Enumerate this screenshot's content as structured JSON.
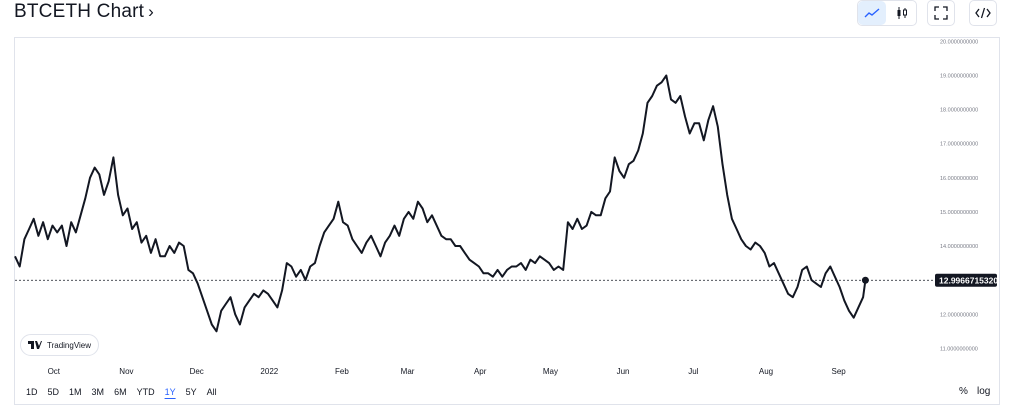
{
  "header": {
    "title": "BTCETH Chart",
    "chevron": "›"
  },
  "toolbar": {
    "buttons": [
      {
        "name": "line-chart-icon",
        "active": true
      },
      {
        "name": "candlestick-icon",
        "active": false
      },
      {
        "name": "fullscreen-icon",
        "active": false
      },
      {
        "name": "embed-code-icon",
        "active": false
      }
    ]
  },
  "logo": {
    "text": "TradingView"
  },
  "ranges": [
    "1D",
    "5D",
    "1M",
    "3M",
    "6M",
    "YTD",
    "1Y",
    "5Y",
    "All"
  ],
  "active_range": "1Y",
  "scale_toggles": {
    "percent": "%",
    "log": "log"
  },
  "colors": {
    "line": "#131722",
    "grid": "#e0e3eb",
    "active": "#2962ff",
    "price_label_bg": "#131722"
  },
  "chart_data": {
    "type": "line",
    "series_name": "BTCETH",
    "current_value": 12.996671532,
    "current_value_label": "12.9966715320",
    "ylim": [
      10.6,
      20.1
    ],
    "y_ticks": [
      11,
      12,
      13,
      14,
      15,
      16,
      17,
      18,
      19,
      20
    ],
    "y_tick_labels": [
      "11.0000000000",
      "12.0000000000",
      "13.0000000000",
      "14.0000000000",
      "15.0000000000",
      "16.0000000000",
      "17.0000000000",
      "18.0000000000",
      "19.0000000000",
      "20.0000000000"
    ],
    "x_ticks": [
      {
        "label": "Oct",
        "date": "2021-10-01"
      },
      {
        "label": "Nov",
        "date": "2021-11-01"
      },
      {
        "label": "Dec",
        "date": "2021-12-01"
      },
      {
        "label": "2022",
        "date": "2022-01-01"
      },
      {
        "label": "Feb",
        "date": "2022-02-01"
      },
      {
        "label": "Mar",
        "date": "2022-03-01"
      },
      {
        "label": "Apr",
        "date": "2022-04-01"
      },
      {
        "label": "May",
        "date": "2022-05-01"
      },
      {
        "label": "Jun",
        "date": "2022-06-01"
      },
      {
        "label": "Jul",
        "date": "2022-07-01"
      },
      {
        "label": "Aug",
        "date": "2022-08-01"
      },
      {
        "label": "Sep",
        "date": "2022-09-01"
      }
    ],
    "xlim": [
      "2021-09-17",
      "2022-10-13"
    ],
    "points": [
      [
        "2021-09-17",
        13.7
      ],
      [
        "2021-09-19",
        13.4
      ],
      [
        "2021-09-21",
        14.2
      ],
      [
        "2021-09-23",
        14.5
      ],
      [
        "2021-09-25",
        14.8
      ],
      [
        "2021-09-27",
        14.3
      ],
      [
        "2021-09-29",
        14.7
      ],
      [
        "2021-10-01",
        14.2
      ],
      [
        "2021-10-03",
        14.6
      ],
      [
        "2021-10-05",
        14.4
      ],
      [
        "2021-10-07",
        14.6
      ],
      [
        "2021-10-09",
        14.0
      ],
      [
        "2021-10-11",
        14.7
      ],
      [
        "2021-10-13",
        14.4
      ],
      [
        "2021-10-15",
        14.9
      ],
      [
        "2021-10-17",
        15.4
      ],
      [
        "2021-10-19",
        16.0
      ],
      [
        "2021-10-21",
        16.3
      ],
      [
        "2021-10-23",
        16.1
      ],
      [
        "2021-10-25",
        15.5
      ],
      [
        "2021-10-27",
        15.9
      ],
      [
        "2021-10-29",
        16.6
      ],
      [
        "2021-10-31",
        15.5
      ],
      [
        "2021-11-02",
        14.9
      ],
      [
        "2021-11-04",
        15.1
      ],
      [
        "2021-11-06",
        14.5
      ],
      [
        "2021-11-08",
        14.7
      ],
      [
        "2021-11-10",
        14.1
      ],
      [
        "2021-11-12",
        14.3
      ],
      [
        "2021-11-14",
        13.8
      ],
      [
        "2021-11-16",
        14.2
      ],
      [
        "2021-11-18",
        13.7
      ],
      [
        "2021-11-20",
        13.7
      ],
      [
        "2021-11-22",
        14.0
      ],
      [
        "2021-11-24",
        13.8
      ],
      [
        "2021-11-26",
        14.1
      ],
      [
        "2021-11-28",
        14.0
      ],
      [
        "2021-11-30",
        13.3
      ],
      [
        "2021-12-02",
        13.2
      ],
      [
        "2021-12-04",
        12.9
      ],
      [
        "2021-12-06",
        12.5
      ],
      [
        "2021-12-08",
        12.1
      ],
      [
        "2021-12-10",
        11.7
      ],
      [
        "2021-12-12",
        11.5
      ],
      [
        "2021-12-14",
        12.1
      ],
      [
        "2021-12-16",
        12.3
      ],
      [
        "2021-12-18",
        12.5
      ],
      [
        "2021-12-20",
        12.0
      ],
      [
        "2021-12-22",
        11.7
      ],
      [
        "2021-12-24",
        12.2
      ],
      [
        "2021-12-26",
        12.4
      ],
      [
        "2021-12-28",
        12.6
      ],
      [
        "2021-12-30",
        12.5
      ],
      [
        "2022-01-01",
        12.7
      ],
      [
        "2022-01-03",
        12.6
      ],
      [
        "2022-01-05",
        12.4
      ],
      [
        "2022-01-07",
        12.2
      ],
      [
        "2022-01-09",
        12.7
      ],
      [
        "2022-01-11",
        13.5
      ],
      [
        "2022-01-13",
        13.4
      ],
      [
        "2022-01-15",
        13.1
      ],
      [
        "2022-01-17",
        13.3
      ],
      [
        "2022-01-19",
        13.0
      ],
      [
        "2022-01-21",
        13.4
      ],
      [
        "2022-01-23",
        13.5
      ],
      [
        "2022-01-25",
        14.0
      ],
      [
        "2022-01-27",
        14.4
      ],
      [
        "2022-01-29",
        14.6
      ],
      [
        "2022-01-31",
        14.8
      ],
      [
        "2022-02-02",
        15.3
      ],
      [
        "2022-02-04",
        14.7
      ],
      [
        "2022-02-06",
        14.6
      ],
      [
        "2022-02-08",
        14.2
      ],
      [
        "2022-02-10",
        14.0
      ],
      [
        "2022-02-12",
        13.8
      ],
      [
        "2022-02-14",
        14.1
      ],
      [
        "2022-02-16",
        14.3
      ],
      [
        "2022-02-18",
        14.0
      ],
      [
        "2022-02-20",
        13.7
      ],
      [
        "2022-02-22",
        14.1
      ],
      [
        "2022-02-24",
        14.3
      ],
      [
        "2022-02-26",
        14.6
      ],
      [
        "2022-02-28",
        14.3
      ],
      [
        "2022-03-02",
        14.8
      ],
      [
        "2022-03-04",
        15.0
      ],
      [
        "2022-03-06",
        14.8
      ],
      [
        "2022-03-08",
        15.3
      ],
      [
        "2022-03-10",
        15.1
      ],
      [
        "2022-03-12",
        14.7
      ],
      [
        "2022-03-14",
        14.9
      ],
      [
        "2022-03-16",
        14.6
      ],
      [
        "2022-03-18",
        14.3
      ],
      [
        "2022-03-20",
        14.2
      ],
      [
        "2022-03-22",
        14.2
      ],
      [
        "2022-03-24",
        14.0
      ],
      [
        "2022-03-26",
        14.0
      ],
      [
        "2022-03-28",
        13.8
      ],
      [
        "2022-03-30",
        13.6
      ],
      [
        "2022-04-01",
        13.5
      ],
      [
        "2022-04-03",
        13.4
      ],
      [
        "2022-04-05",
        13.2
      ],
      [
        "2022-04-07",
        13.2
      ],
      [
        "2022-04-09",
        13.1
      ],
      [
        "2022-04-11",
        13.3
      ],
      [
        "2022-04-13",
        13.1
      ],
      [
        "2022-04-15",
        13.3
      ],
      [
        "2022-04-17",
        13.4
      ],
      [
        "2022-04-19",
        13.4
      ],
      [
        "2022-04-21",
        13.5
      ],
      [
        "2022-04-23",
        13.3
      ],
      [
        "2022-04-25",
        13.6
      ],
      [
        "2022-04-27",
        13.5
      ],
      [
        "2022-04-29",
        13.7
      ],
      [
        "2022-05-01",
        13.6
      ],
      [
        "2022-05-03",
        13.5
      ],
      [
        "2022-05-05",
        13.3
      ],
      [
        "2022-05-07",
        13.4
      ],
      [
        "2022-05-09",
        13.3
      ],
      [
        "2022-05-11",
        14.7
      ],
      [
        "2022-05-13",
        14.5
      ],
      [
        "2022-05-15",
        14.8
      ],
      [
        "2022-05-17",
        14.5
      ],
      [
        "2022-05-19",
        14.6
      ],
      [
        "2022-05-21",
        15.0
      ],
      [
        "2022-05-23",
        14.9
      ],
      [
        "2022-05-25",
        14.9
      ],
      [
        "2022-05-27",
        15.4
      ],
      [
        "2022-05-29",
        15.6
      ],
      [
        "2022-05-31",
        16.6
      ],
      [
        "2022-06-02",
        16.2
      ],
      [
        "2022-06-04",
        16.0
      ],
      [
        "2022-06-06",
        16.4
      ],
      [
        "2022-06-08",
        16.5
      ],
      [
        "2022-06-10",
        16.8
      ],
      [
        "2022-06-12",
        17.3
      ],
      [
        "2022-06-14",
        18.2
      ],
      [
        "2022-06-16",
        18.4
      ],
      [
        "2022-06-18",
        18.7
      ],
      [
        "2022-06-20",
        18.8
      ],
      [
        "2022-06-22",
        19.0
      ],
      [
        "2022-06-24",
        18.3
      ],
      [
        "2022-06-26",
        18.2
      ],
      [
        "2022-06-28",
        18.4
      ],
      [
        "2022-06-30",
        17.8
      ],
      [
        "2022-07-02",
        17.3
      ],
      [
        "2022-07-04",
        17.6
      ],
      [
        "2022-07-06",
        17.6
      ],
      [
        "2022-07-08",
        17.1
      ],
      [
        "2022-07-10",
        17.7
      ],
      [
        "2022-07-12",
        18.1
      ],
      [
        "2022-07-14",
        17.5
      ],
      [
        "2022-07-16",
        16.4
      ],
      [
        "2022-07-18",
        15.5
      ],
      [
        "2022-07-20",
        14.8
      ],
      [
        "2022-07-22",
        14.5
      ],
      [
        "2022-07-24",
        14.2
      ],
      [
        "2022-07-26",
        14.0
      ],
      [
        "2022-07-28",
        13.9
      ],
      [
        "2022-07-30",
        14.1
      ],
      [
        "2022-08-01",
        14.0
      ],
      [
        "2022-08-03",
        13.8
      ],
      [
        "2022-08-05",
        13.4
      ],
      [
        "2022-08-07",
        13.5
      ],
      [
        "2022-08-09",
        13.2
      ],
      [
        "2022-08-11",
        12.9
      ],
      [
        "2022-08-13",
        12.6
      ],
      [
        "2022-08-15",
        12.5
      ],
      [
        "2022-08-17",
        12.8
      ],
      [
        "2022-08-19",
        13.3
      ],
      [
        "2022-08-21",
        13.4
      ],
      [
        "2022-08-23",
        13.0
      ],
      [
        "2022-08-25",
        12.9
      ],
      [
        "2022-08-27",
        12.8
      ],
      [
        "2022-08-29",
        13.2
      ],
      [
        "2022-08-31",
        13.4
      ],
      [
        "2022-09-02",
        13.1
      ],
      [
        "2022-09-04",
        12.8
      ],
      [
        "2022-09-06",
        12.4
      ],
      [
        "2022-09-08",
        12.1
      ],
      [
        "2022-09-10",
        11.9
      ],
      [
        "2022-09-12",
        12.2
      ],
      [
        "2022-09-14",
        12.5
      ],
      [
        "2022-09-15",
        12.99667
      ]
    ],
    "grid": true,
    "legend": "none"
  }
}
